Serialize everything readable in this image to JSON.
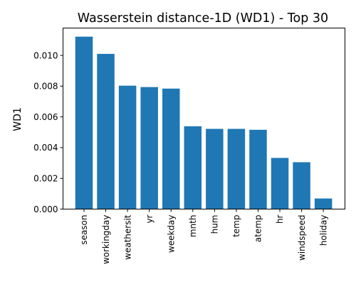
{
  "chart_data": {
    "type": "bar",
    "title": "Wasserstein distance-1D (WD1) - Top 30",
    "xlabel": "",
    "ylabel": "WD1",
    "categories": [
      "season",
      "workingday",
      "weathersit",
      "yr",
      "weekday",
      "mnth",
      "hum",
      "temp",
      "atemp",
      "hr",
      "windspeed",
      "holiday"
    ],
    "values": [
      0.01122,
      0.0101,
      0.00803,
      0.00794,
      0.00784,
      0.00539,
      0.00522,
      0.00522,
      0.00516,
      0.00333,
      0.00305,
      0.00069
    ],
    "ylim": [
      0,
      0.01178
    ],
    "yticks": [
      "0.000",
      "0.002",
      "0.004",
      "0.006",
      "0.008",
      "0.010"
    ],
    "ytick_values": [
      0,
      0.002,
      0.004,
      0.006,
      0.008,
      0.01
    ],
    "grid": false,
    "legend": "none",
    "bar_color": "#1f77b4"
  }
}
